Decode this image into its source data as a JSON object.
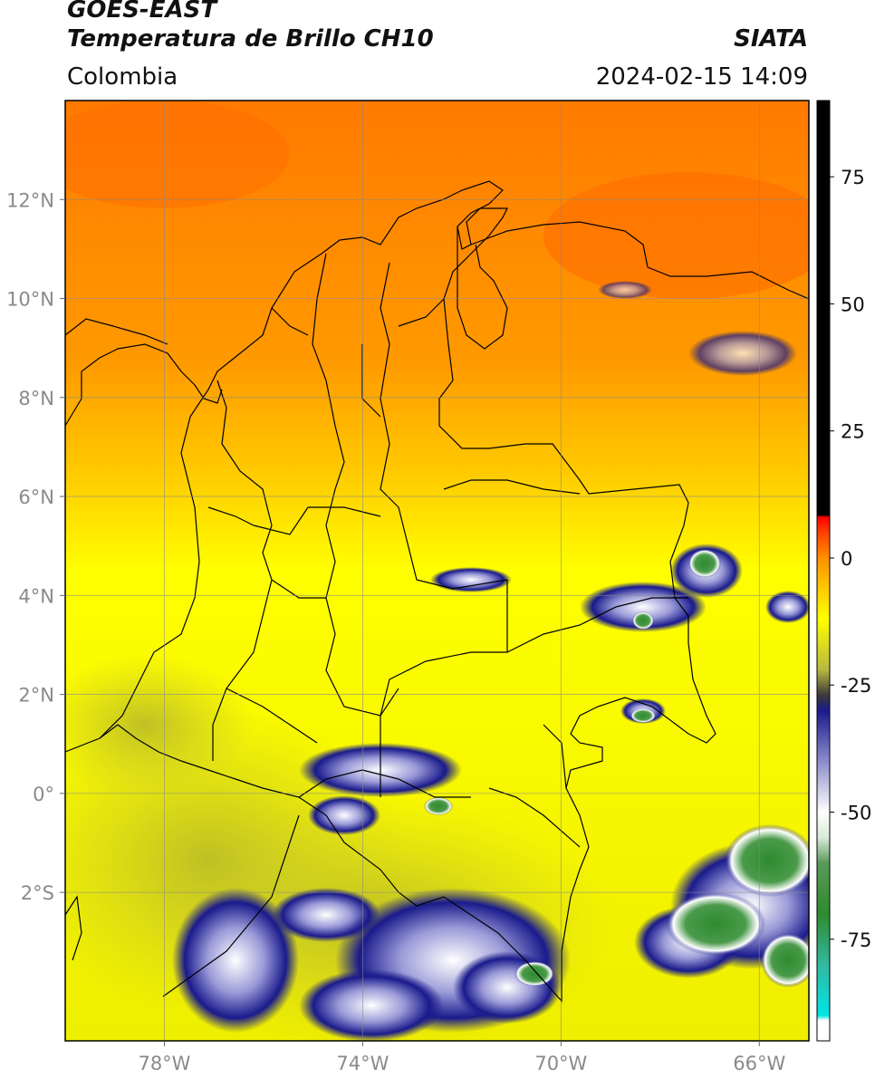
{
  "header": {
    "satellite": "GOES-EAST",
    "product": "Temperatura de Brillo CH10",
    "region": "Colombia",
    "institution": "SIATA",
    "datetime": "2024-02-15 14:09"
  },
  "map": {
    "lon_ticks": [
      {
        "value": -78,
        "label": "78°W"
      },
      {
        "value": -74,
        "label": "74°W"
      },
      {
        "value": -70,
        "label": "70°W"
      },
      {
        "value": -66,
        "label": "66°W"
      }
    ],
    "lat_ticks": [
      {
        "value": 12,
        "label": "12°N"
      },
      {
        "value": 10,
        "label": "10°N"
      },
      {
        "value": 8,
        "label": "8°N"
      },
      {
        "value": 6,
        "label": "6°N"
      },
      {
        "value": 4,
        "label": "4°N"
      },
      {
        "value": 2,
        "label": "2°N"
      },
      {
        "value": 0,
        "label": "0°"
      },
      {
        "value": -2,
        "label": "2°S"
      }
    ],
    "lon_range": [
      -80,
      -65
    ],
    "lat_range": [
      -5,
      14
    ]
  },
  "colorbar": {
    "range": [
      -95,
      90
    ],
    "ticks": [
      {
        "value": 75,
        "label": "75"
      },
      {
        "value": 50,
        "label": "50"
      },
      {
        "value": 25,
        "label": "25"
      },
      {
        "value": 0,
        "label": "0"
      },
      {
        "value": -25,
        "label": "-25"
      },
      {
        "value": -50,
        "label": "-50"
      },
      {
        "value": -75,
        "label": "-75"
      }
    ],
    "stops": [
      {
        "value": -95,
        "color": "#ffffff"
      },
      {
        "value": -91,
        "color": "#ffffff"
      },
      {
        "value": -90,
        "color": "#00e5e5"
      },
      {
        "value": -80,
        "color": "#33b8a0"
      },
      {
        "value": -70,
        "color": "#2e8b2e"
      },
      {
        "value": -60,
        "color": "#5a9a5a"
      },
      {
        "value": -55,
        "color": "#d8ead8"
      },
      {
        "value": -50,
        "color": "#ffffff"
      },
      {
        "value": -40,
        "color": "#8c8ccc"
      },
      {
        "value": -30,
        "color": "#1a1a8c"
      },
      {
        "value": -27,
        "color": "#3a3a3a"
      },
      {
        "value": -22,
        "color": "#b8b840"
      },
      {
        "value": -12,
        "color": "#ffff00"
      },
      {
        "value": -5,
        "color": "#ffc000"
      },
      {
        "value": 0,
        "color": "#ff9000"
      },
      {
        "value": 5,
        "color": "#ff4000"
      },
      {
        "value": 8,
        "color": "#ff0000"
      },
      {
        "value": 8.5,
        "color": "#000000"
      },
      {
        "value": 90,
        "color": "#000000"
      }
    ]
  }
}
